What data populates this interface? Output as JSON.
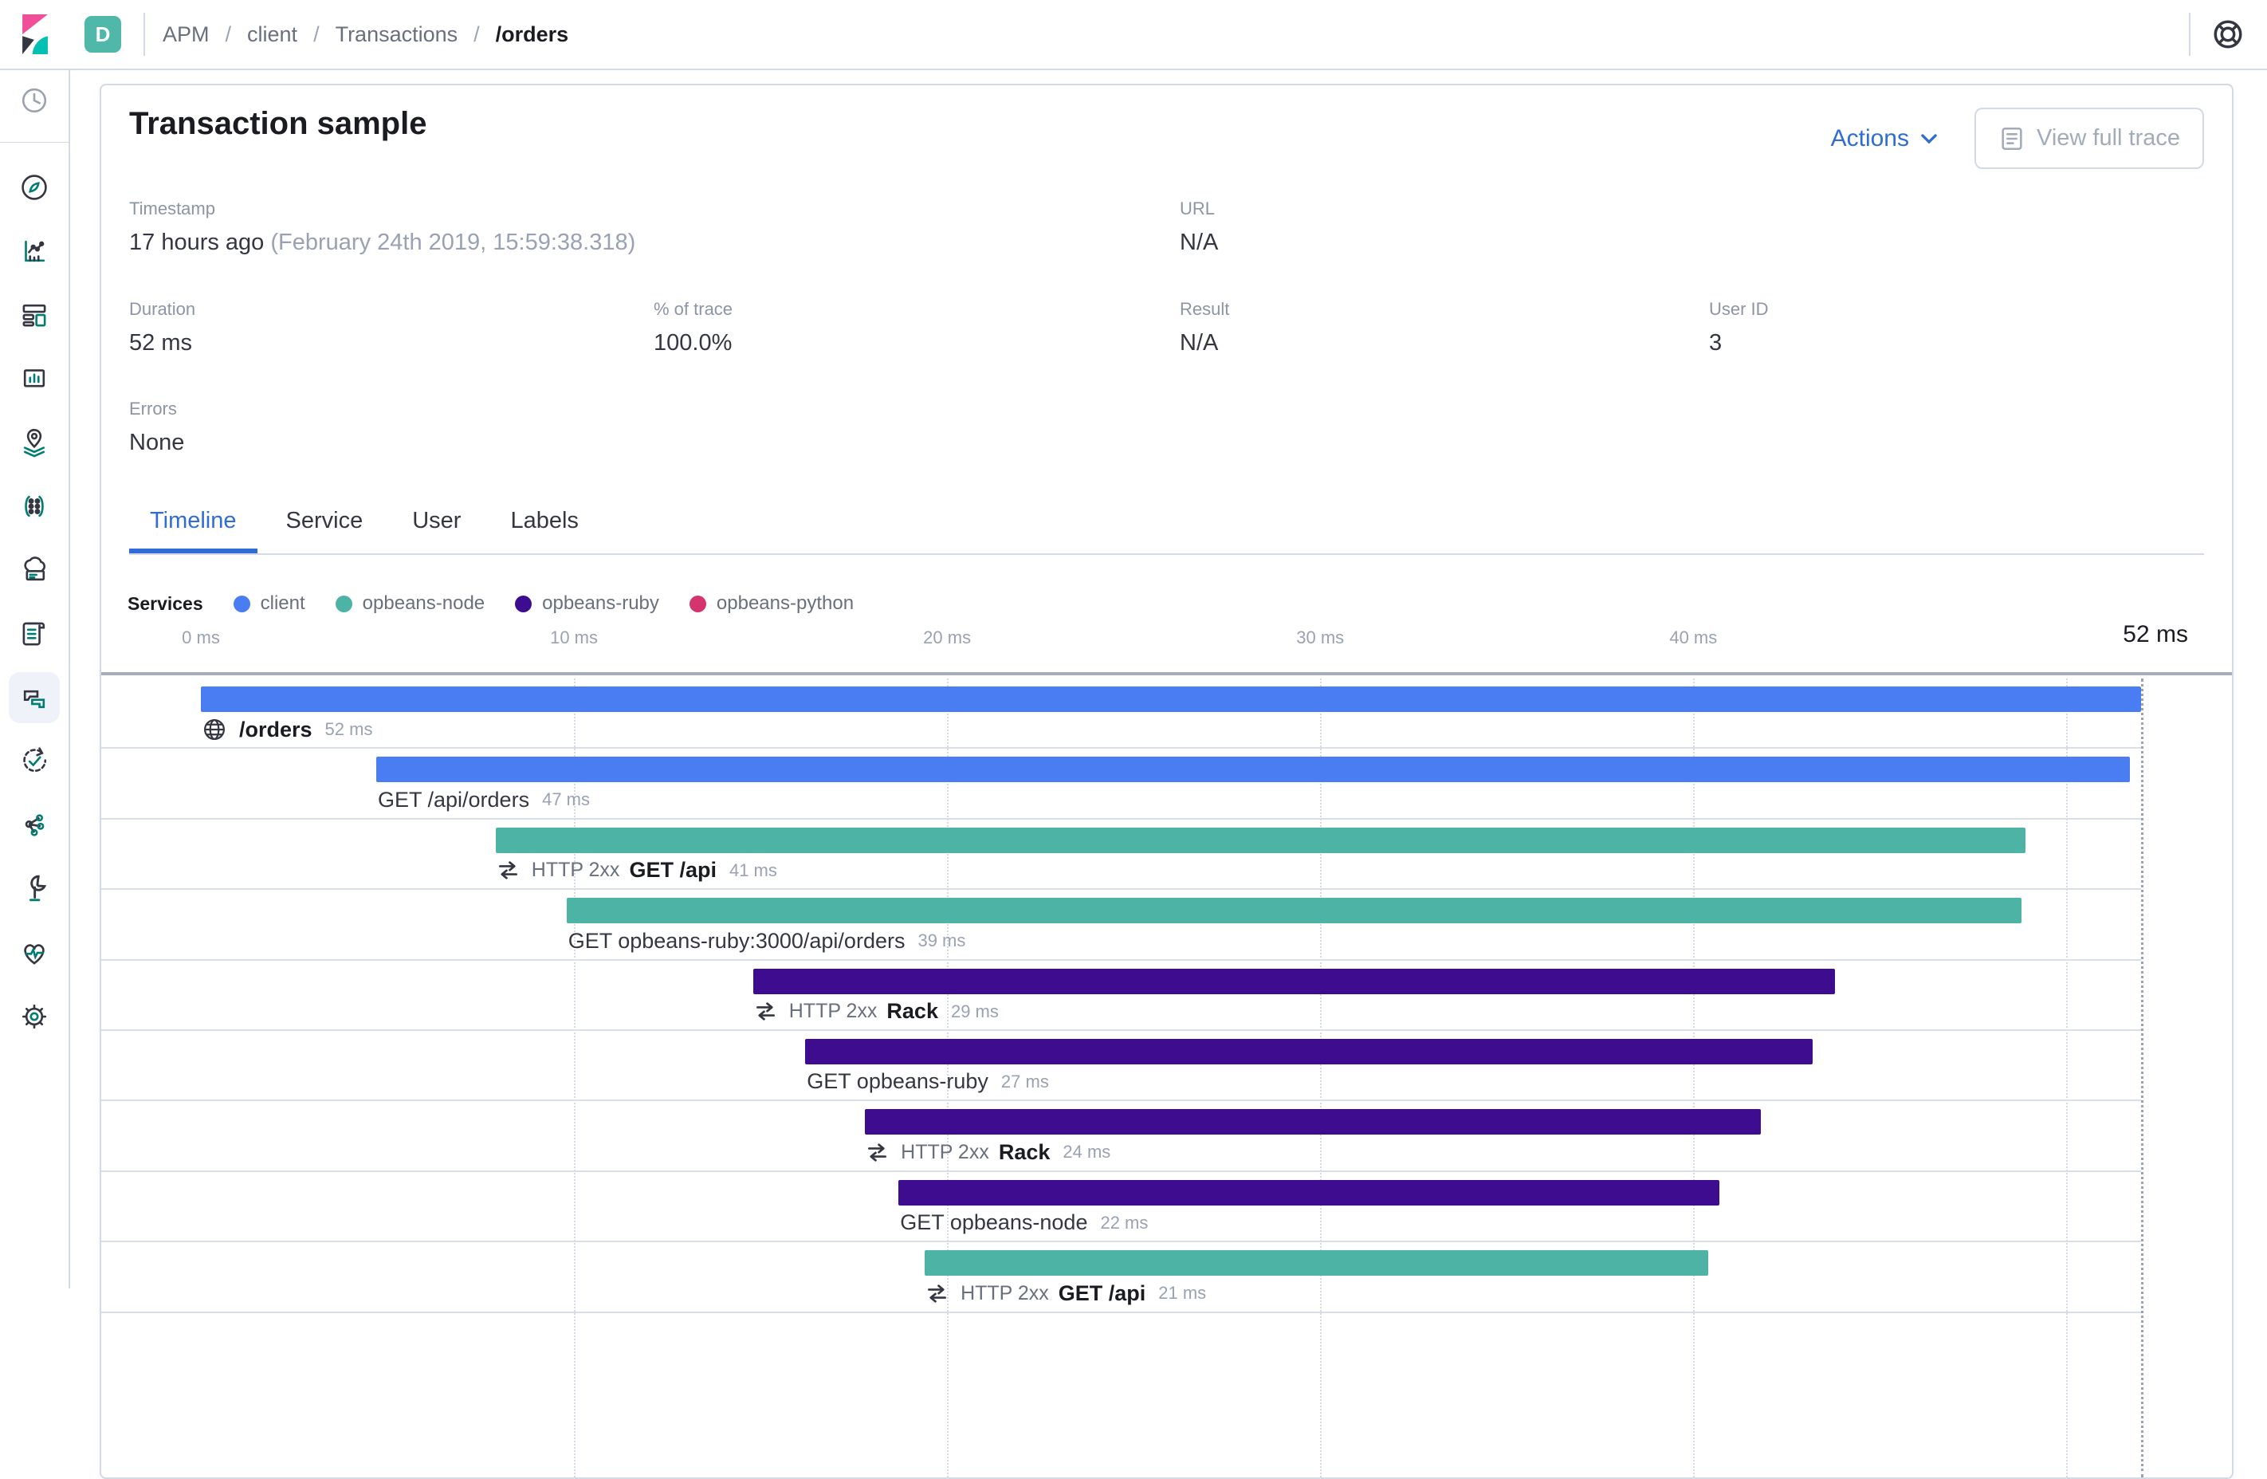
{
  "topbar": {
    "space_badge": "D",
    "breadcrumbs": [
      "APM",
      "client",
      "Transactions",
      "/orders"
    ]
  },
  "sidebar": {
    "items": [
      "recently-viewed",
      "discover",
      "visualize",
      "dashboard",
      "canvas",
      "maps",
      "machine-learning",
      "infrastructure",
      "logs",
      "apm",
      "uptime",
      "graph",
      "dev-tools",
      "monitoring",
      "management"
    ],
    "selected": "apm"
  },
  "header": {
    "title": "Transaction sample",
    "actions_label": "Actions",
    "view_full_trace_label": "View full trace"
  },
  "metadata": {
    "timestamp": {
      "label": "Timestamp",
      "value": "17 hours ago",
      "secondary": "(February 24th 2019, 15:59:38.318)"
    },
    "url": {
      "label": "URL",
      "value": "N/A"
    },
    "duration": {
      "label": "Duration",
      "value": "52 ms"
    },
    "pct_of_trace": {
      "label": "% of trace",
      "value": "100.0%"
    },
    "result": {
      "label": "Result",
      "value": "N/A"
    },
    "user_id": {
      "label": "User ID",
      "value": "3"
    },
    "errors": {
      "label": "Errors",
      "value": "None"
    }
  },
  "tabs": {
    "items": [
      {
        "label": "Timeline",
        "selected": true
      },
      {
        "label": "Service",
        "selected": false
      },
      {
        "label": "User",
        "selected": false
      },
      {
        "label": "Labels",
        "selected": false
      }
    ]
  },
  "chart_data": {
    "type": "waterfall",
    "title": "Transaction trace timeline",
    "legend_title": "Services",
    "services_legend": [
      {
        "name": "client",
        "color": "#4A7DF2"
      },
      {
        "name": "opbeans-node",
        "color": "#4DB3A4"
      },
      {
        "name": "opbeans-ruby",
        "color": "#3E0C8E"
      },
      {
        "name": "opbeans-python",
        "color": "#D5356E"
      }
    ],
    "xlim_ms": [
      0,
      52
    ],
    "axis_ticks": [
      {
        "ms": 0,
        "label": "0 ms"
      },
      {
        "ms": 10,
        "label": "10 ms"
      },
      {
        "ms": 20,
        "label": "20 ms"
      },
      {
        "ms": 30,
        "label": "30 ms"
      },
      {
        "ms": 40,
        "label": "40 ms"
      }
    ],
    "gridlines_ms": [
      10,
      20,
      30,
      40,
      50
    ],
    "total_duration_label": "52 ms",
    "rows": [
      {
        "kind": "transaction",
        "icon": "globe",
        "prefix": "",
        "name": "/orders",
        "duration_label": "52 ms",
        "start_ms": 0,
        "duration_ms": 52,
        "color": "#4A7DF2",
        "service": "client"
      },
      {
        "kind": "span",
        "icon": "",
        "prefix": "",
        "name": "GET /api/orders",
        "duration_label": "47 ms",
        "start_ms": 4.7,
        "duration_ms": 47,
        "color": "#4A7DF2",
        "service": "client"
      },
      {
        "kind": "transaction",
        "icon": "merge",
        "prefix": "HTTP 2xx",
        "name": "GET /api",
        "duration_label": "41 ms",
        "start_ms": 7.9,
        "duration_ms": 41,
        "color": "#4DB3A4",
        "service": "opbeans-node"
      },
      {
        "kind": "span",
        "icon": "",
        "prefix": "",
        "name": "GET opbeans-ruby:3000/api/orders",
        "duration_label": "39 ms",
        "start_ms": 9.8,
        "duration_ms": 39,
        "color": "#4DB3A4",
        "service": "opbeans-node"
      },
      {
        "kind": "transaction",
        "icon": "merge",
        "prefix": "HTTP 2xx",
        "name": "Rack",
        "duration_label": "29 ms",
        "start_ms": 14.8,
        "duration_ms": 29,
        "color": "#3E0C8E",
        "service": "opbeans-ruby"
      },
      {
        "kind": "span",
        "icon": "",
        "prefix": "",
        "name": "GET opbeans-ruby",
        "duration_label": "27 ms",
        "start_ms": 16.2,
        "duration_ms": 27,
        "color": "#3E0C8E",
        "service": "opbeans-ruby"
      },
      {
        "kind": "transaction",
        "icon": "merge",
        "prefix": "HTTP 2xx",
        "name": "Rack",
        "duration_label": "24 ms",
        "start_ms": 17.8,
        "duration_ms": 24,
        "color": "#3E0C8E",
        "service": "opbeans-ruby"
      },
      {
        "kind": "span",
        "icon": "",
        "prefix": "",
        "name": "GET opbeans-node",
        "duration_label": "22 ms",
        "start_ms": 18.7,
        "duration_ms": 22,
        "color": "#3E0C8E",
        "service": "opbeans-ruby"
      },
      {
        "kind": "transaction",
        "icon": "merge",
        "prefix": "HTTP 2xx",
        "name": "GET /api",
        "duration_label": "21 ms",
        "start_ms": 19.4,
        "duration_ms": 21,
        "color": "#4DB3A4",
        "service": "opbeans-node"
      }
    ]
  }
}
